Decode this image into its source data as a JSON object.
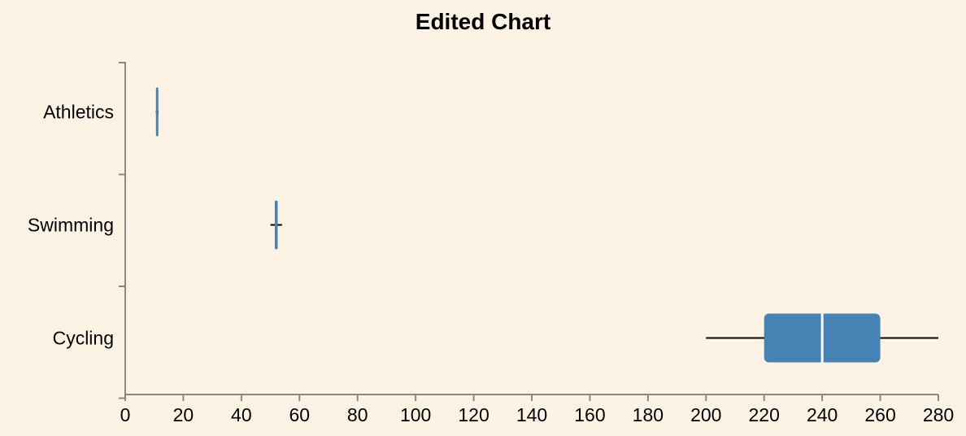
{
  "chart_data": {
    "type": "boxplot",
    "orientation": "horizontal",
    "title": "Edited Chart",
    "xlabel": "",
    "ylabel": "",
    "xlim": [
      0,
      280
    ],
    "x_ticks": [
      0,
      20,
      40,
      60,
      80,
      100,
      120,
      140,
      160,
      180,
      200,
      220,
      240,
      260,
      280
    ],
    "categories": [
      "Athletics",
      "Swimming",
      "Cycling"
    ],
    "boxes": [
      {
        "category": "Athletics",
        "min": 10.5,
        "q1": 11,
        "median": 11,
        "q3": 11.5,
        "max": 11.5
      },
      {
        "category": "Swimming",
        "min": 50,
        "q1": 51.5,
        "median": 52,
        "q3": 52.5,
        "max": 54
      },
      {
        "category": "Cycling",
        "min": 200,
        "q1": 220,
        "median": 240,
        "q3": 260,
        "max": 280
      }
    ],
    "grid": false,
    "colors": {
      "background": "#fdf3e5",
      "box_fill": "#4682b4",
      "median": "#ffffff",
      "whisker": "#000000",
      "axis": "#888888"
    }
  }
}
